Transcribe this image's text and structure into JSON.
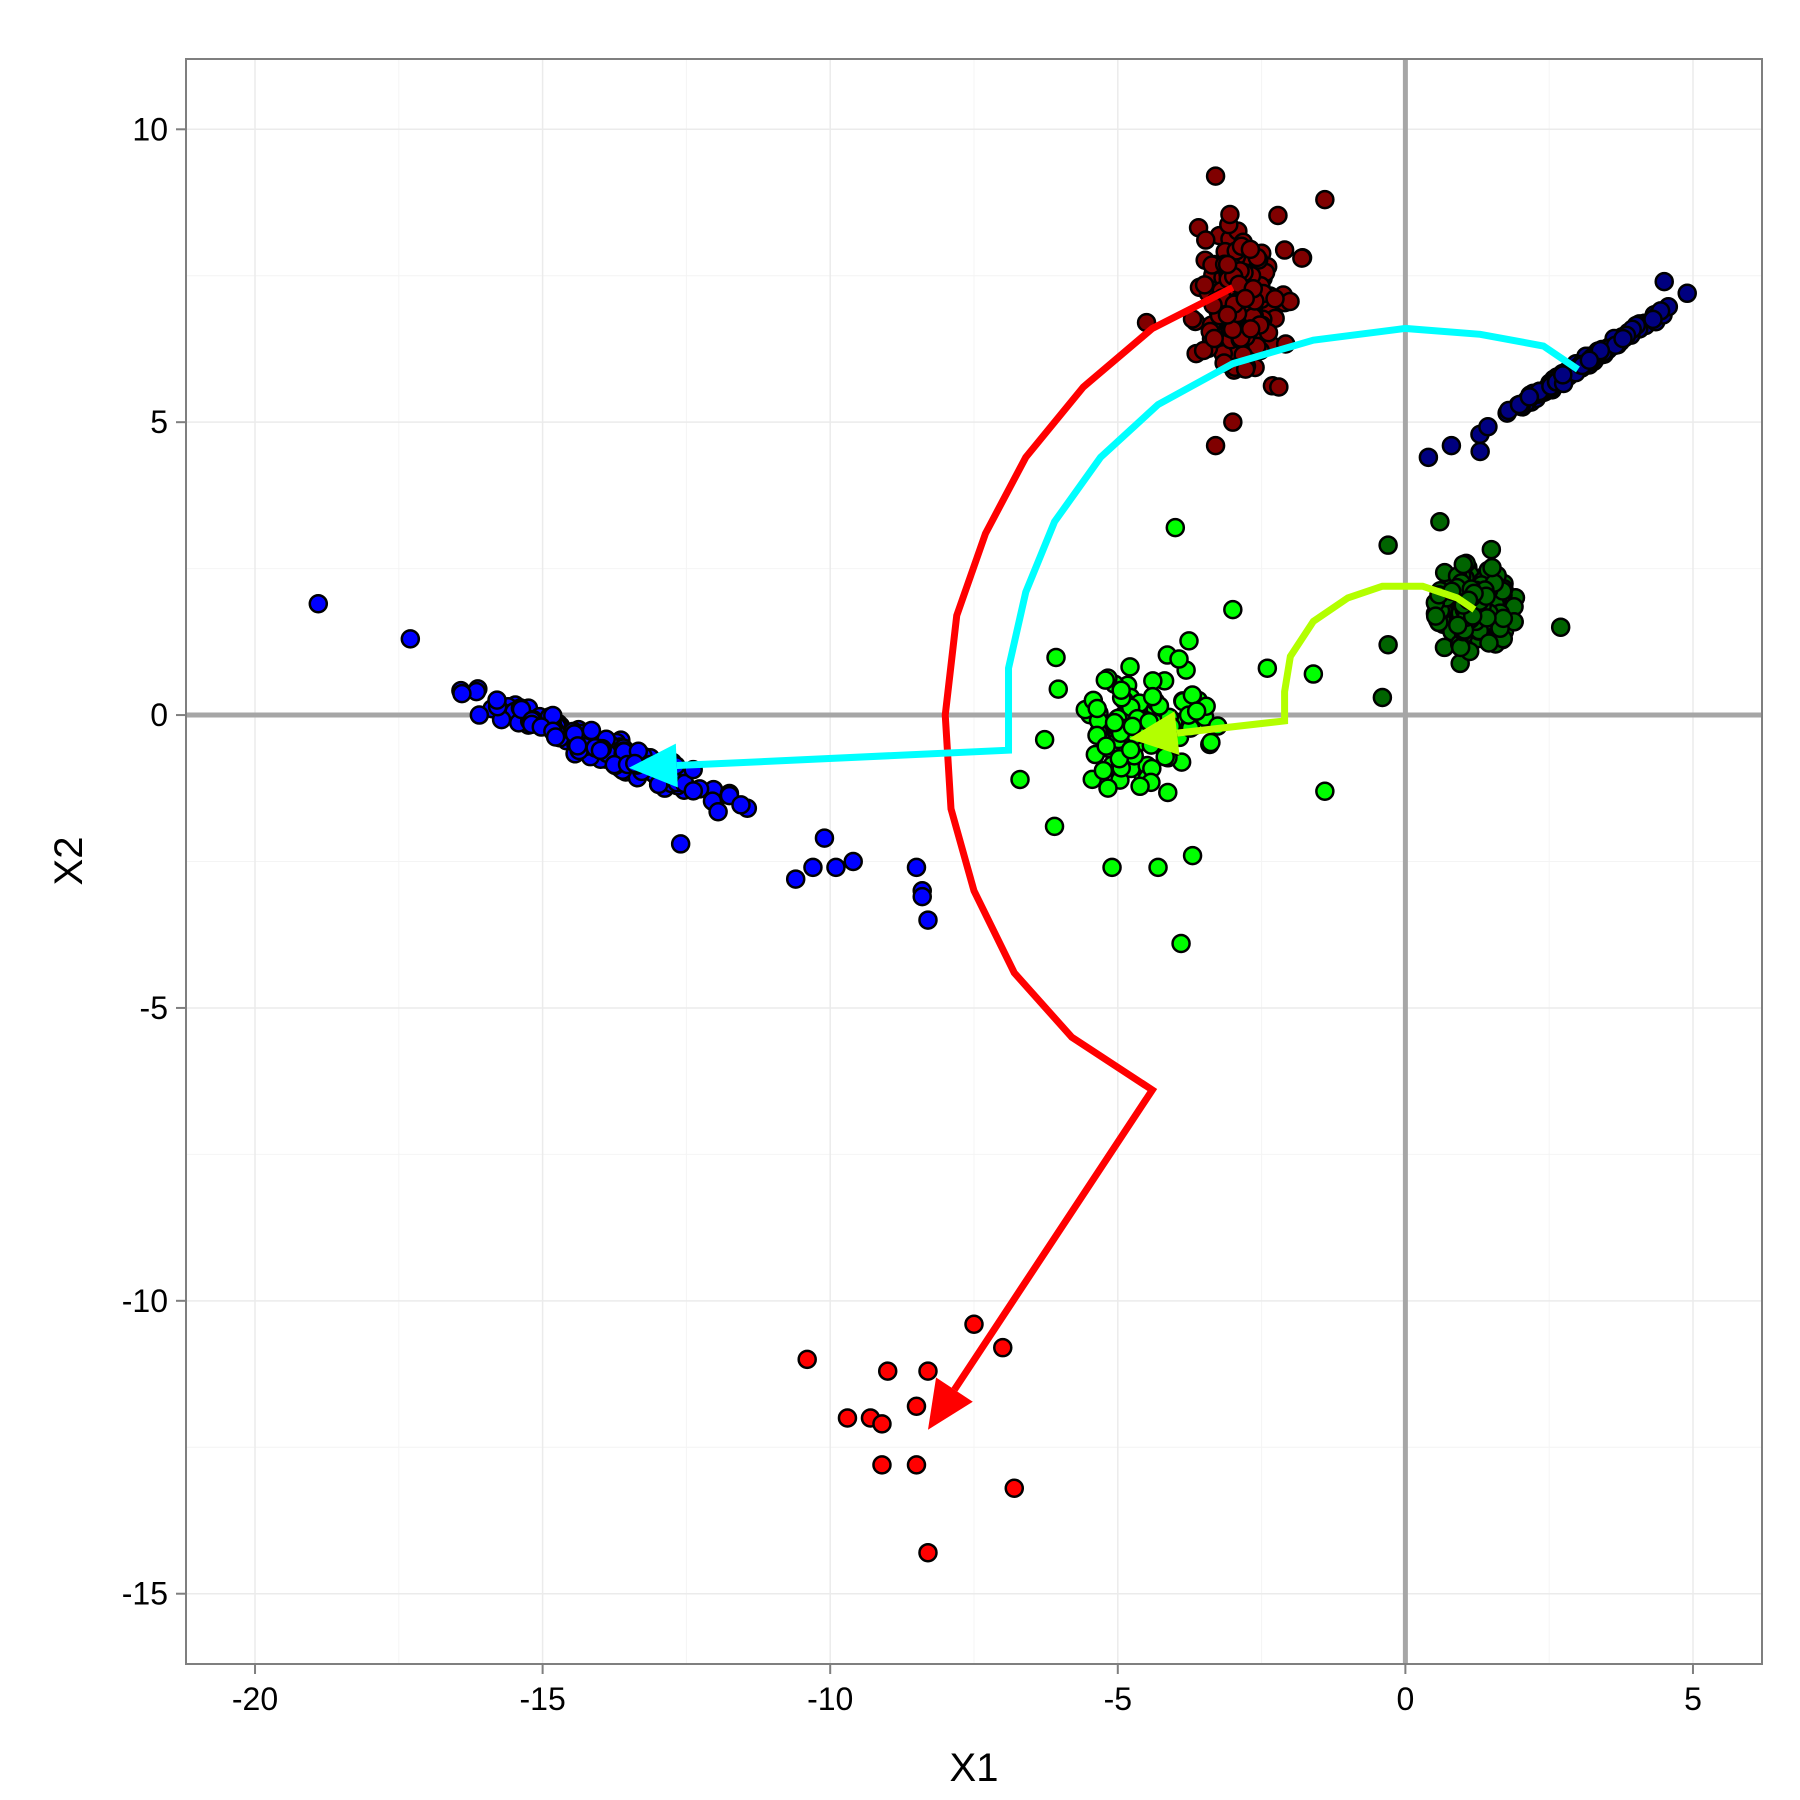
{
  "chart_data": {
    "type": "scatter",
    "title": "",
    "xlabel": "X1",
    "ylabel": "X2",
    "xlim": [
      -21.2,
      6.2
    ],
    "ylim": [
      -16.2,
      11.2
    ],
    "xticks": [
      -20,
      -15,
      -10,
      -5,
      0,
      5
    ],
    "yticks": [
      -15,
      -10,
      -5,
      0,
      5,
      10
    ],
    "grid": true,
    "legend": "none",
    "reference_lines": {
      "x": 0,
      "y": 0,
      "color": "#a6a6a6"
    },
    "point_outline": "#000000",
    "clusters": [
      {
        "color": "#800000",
        "center": [
          -2.9,
          7.1
        ],
        "spread": [
          0.55,
          0.85
        ],
        "corr": 0,
        "count": 170,
        "extra": [
          [
            -3.3,
            9.2
          ],
          [
            -1.4,
            8.8
          ],
          [
            -3.3,
            4.6
          ],
          [
            -3.0,
            5.0
          ],
          [
            -4.5,
            6.7
          ],
          [
            -1.8,
            7.8
          ],
          [
            -2.2,
            5.6
          ]
        ]
      },
      {
        "color": "#000080",
        "center": [
          3.1,
          6.0
        ],
        "spread": [
          0.85,
          0.55
        ],
        "corr": 0.995,
        "count": 170,
        "extra": [
          [
            0.4,
            4.4
          ],
          [
            0.8,
            4.6
          ],
          [
            1.3,
            4.5
          ],
          [
            4.9,
            7.2
          ],
          [
            4.5,
            7.4
          ]
        ]
      },
      {
        "color": "#006400",
        "center": [
          1.2,
          1.8
        ],
        "spread": [
          0.45,
          0.45
        ],
        "corr": 0,
        "count": 200,
        "extra": [
          [
            -0.4,
            0.3
          ],
          [
            -0.3,
            1.2
          ],
          [
            2.7,
            1.5
          ],
          [
            0.6,
            3.3
          ],
          [
            -0.3,
            2.9
          ]
        ]
      },
      {
        "color": "#00ff00",
        "center": [
          -4.7,
          -0.2
        ],
        "spread": [
          0.9,
          0.9
        ],
        "corr": 0,
        "count": 110,
        "extra": [
          [
            -4.0,
            3.2
          ],
          [
            -1.6,
            0.7
          ],
          [
            -1.4,
            -1.3
          ],
          [
            -3.0,
            1.8
          ],
          [
            -3.9,
            -3.9
          ],
          [
            -5.1,
            -2.6
          ],
          [
            -4.3,
            -2.6
          ],
          [
            -6.1,
            -1.9
          ],
          [
            -6.7,
            -1.1
          ],
          [
            -2.4,
            0.8
          ],
          [
            -3.7,
            -2.4
          ]
        ]
      },
      {
        "color": "#0000ff",
        "center": [
          -13.9,
          -0.6
        ],
        "spread": [
          1.4,
          0.6
        ],
        "corr": -0.96,
        "count": 200,
        "extra": [
          [
            -18.9,
            1.9
          ],
          [
            -17.3,
            1.3
          ],
          [
            -16.1,
            0.0
          ],
          [
            -12.6,
            -2.2
          ],
          [
            -10.1,
            -2.1
          ],
          [
            -10.3,
            -2.6
          ],
          [
            -9.6,
            -2.5
          ],
          [
            -9.9,
            -2.6
          ],
          [
            -10.6,
            -2.8
          ],
          [
            -8.5,
            -2.6
          ],
          [
            -8.4,
            -3.0
          ],
          [
            -8.3,
            -3.5
          ],
          [
            -8.4,
            -3.1
          ]
        ]
      },
      {
        "color": "#ff0000",
        "center": [
          -8.6,
          -12.0
        ],
        "spread": [
          0,
          0
        ],
        "corr": 0,
        "count": 0,
        "extra": [
          [
            -10.4,
            -11.0
          ],
          [
            -9.0,
            -11.2
          ],
          [
            -8.3,
            -11.2
          ],
          [
            -7.5,
            -10.4
          ],
          [
            -7.0,
            -10.8
          ],
          [
            -9.7,
            -12.0
          ],
          [
            -9.3,
            -12.0
          ],
          [
            -9.1,
            -12.1
          ],
          [
            -8.5,
            -11.8
          ],
          [
            -9.1,
            -12.8
          ],
          [
            -8.5,
            -12.8
          ],
          [
            -6.8,
            -13.2
          ],
          [
            -8.3,
            -14.3
          ]
        ]
      }
    ],
    "arrows": [
      {
        "color": "#ff0000",
        "path": [
          [
            -3.0,
            7.3
          ],
          [
            -4.4,
            6.6
          ],
          [
            -5.6,
            5.6
          ],
          [
            -6.6,
            4.4
          ],
          [
            -7.3,
            3.1
          ],
          [
            -7.8,
            1.7
          ],
          [
            -8.0,
            0.0
          ],
          [
            -7.9,
            -1.6
          ],
          [
            -7.5,
            -3.0
          ],
          [
            -6.8,
            -4.4
          ],
          [
            -5.8,
            -5.5
          ],
          [
            -4.4,
            -6.4
          ],
          [
            -8.3,
            -12.2
          ]
        ]
      },
      {
        "color": "#00ffff",
        "path": [
          [
            3.0,
            5.9
          ],
          [
            2.4,
            6.3
          ],
          [
            1.3,
            6.5
          ],
          [
            0.0,
            6.6
          ],
          [
            -1.6,
            6.4
          ],
          [
            -3.0,
            6.0
          ],
          [
            -4.3,
            5.3
          ],
          [
            -5.3,
            4.4
          ],
          [
            -6.1,
            3.3
          ],
          [
            -6.6,
            2.1
          ],
          [
            -6.9,
            0.8
          ],
          [
            -6.9,
            -0.6
          ],
          [
            -13.5,
            -0.9
          ]
        ]
      },
      {
        "color": "#b3ff00",
        "path": [
          [
            1.2,
            1.8
          ],
          [
            0.9,
            2.0
          ],
          [
            0.3,
            2.2
          ],
          [
            -0.4,
            2.2
          ],
          [
            -1.0,
            2.0
          ],
          [
            -1.6,
            1.6
          ],
          [
            -2.0,
            1.0
          ],
          [
            -2.1,
            0.4
          ],
          [
            -2.1,
            -0.1
          ],
          [
            -4.8,
            -0.4
          ]
        ]
      }
    ]
  }
}
